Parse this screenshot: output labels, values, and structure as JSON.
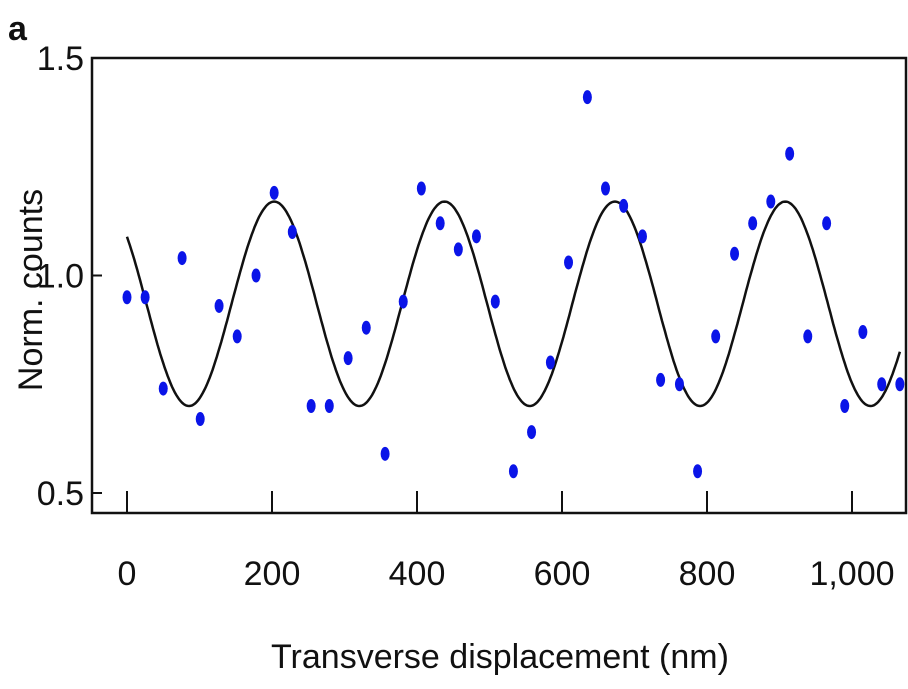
{
  "panel_label": "a",
  "chart_data": {
    "type": "scatter",
    "xlabel": "Transverse displacement (nm)",
    "ylabel": "Norm. counts",
    "xlim": [
      -40,
      1070
    ],
    "ylim": [
      0.45,
      1.5
    ],
    "x_ticks": [
      0,
      200,
      400,
      600,
      800,
      1000
    ],
    "x_tick_labels": [
      "0",
      "200",
      "400",
      "600",
      "800",
      "1,000"
    ],
    "y_ticks": [
      0.5,
      1.0,
      1.5
    ],
    "y_tick_labels": [
      "0.5",
      "1.0",
      "1.5"
    ],
    "points_color": "#0a14e8",
    "fit_color": "#111111",
    "series": [
      {
        "kind": "points",
        "x": [
          0,
          25,
          50,
          76,
          101,
          127,
          152,
          178,
          203,
          228,
          254,
          279,
          305,
          330,
          356,
          381,
          406,
          432,
          457,
          482,
          508,
          533,
          558,
          584,
          609,
          635,
          660,
          685,
          711,
          736,
          762,
          787,
          812,
          838,
          863,
          888,
          914,
          939,
          965,
          990,
          1015,
          1041,
          1066
        ],
        "y": [
          0.95,
          0.95,
          0.74,
          1.04,
          0.67,
          0.93,
          0.86,
          1.0,
          1.19,
          1.1,
          0.7,
          0.7,
          0.81,
          0.88,
          0.59,
          0.94,
          1.2,
          1.12,
          1.06,
          1.09,
          0.94,
          0.55,
          0.64,
          0.8,
          1.03,
          1.41,
          1.2,
          1.16,
          1.09,
          0.76,
          0.75,
          0.55,
          0.86,
          1.05,
          1.12,
          1.17,
          1.28,
          0.86,
          1.12,
          0.7,
          0.87,
          0.75,
          0.75
        ]
      },
      {
        "kind": "fit",
        "function": "sine",
        "offset": 0.935,
        "amplitude": 0.235,
        "period_nm": 235,
        "phase_peak_x": 203,
        "x_range": [
          0,
          1066
        ]
      }
    ]
  }
}
